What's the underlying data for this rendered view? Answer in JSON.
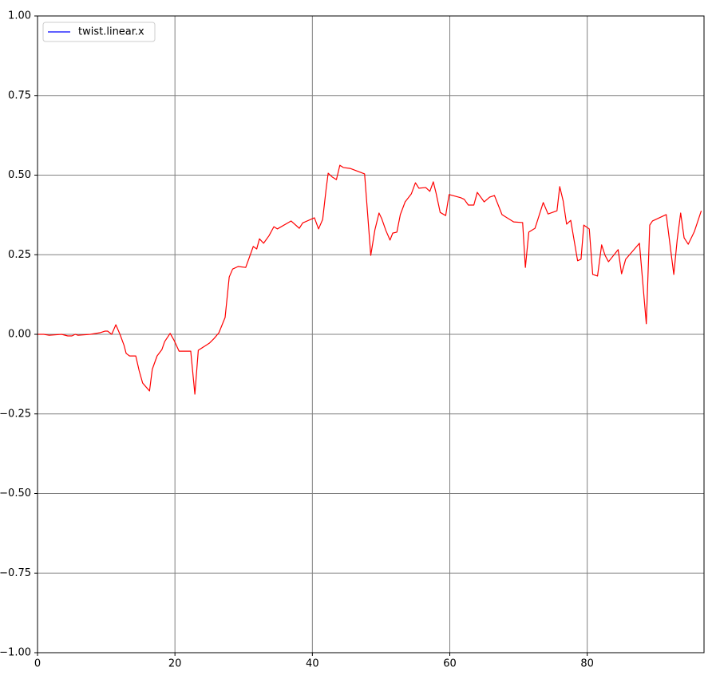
{
  "chart_data": {
    "type": "line",
    "x": [
      0.0,
      0.9,
      1.7,
      3.5,
      4.4,
      5.0,
      5.5,
      5.9,
      7.7,
      9.1,
      9.8,
      10.2,
      10.8,
      11.4,
      12.0,
      12.6,
      12.9,
      13.4,
      14.3,
      14.8,
      15.3,
      16.3,
      16.7,
      17.4,
      18.1,
      18.5,
      19.3,
      19.9,
      20.6,
      20.9,
      22.3,
      22.9,
      23.4,
      25.0,
      25.7,
      26.4,
      27.3,
      27.9,
      28.4,
      29.2,
      30.3,
      31.4,
      31.9,
      32.3,
      32.9,
      33.7,
      34.4,
      34.9,
      36.9,
      38.1,
      38.6,
      40.3,
      40.9,
      41.5,
      42.0,
      42.3,
      42.9,
      43.5,
      44.0,
      44.5,
      45.5,
      47.6,
      48.5,
      49.1,
      49.7,
      50.1,
      50.7,
      51.3,
      51.7,
      52.3,
      52.8,
      53.5,
      54.4,
      55.0,
      55.5,
      56.5,
      57.1,
      57.6,
      58.0,
      58.6,
      59.4,
      59.9,
      61.6,
      62.1,
      62.7,
      63.5,
      64.0,
      65.0,
      65.8,
      66.5,
      67.6,
      69.3,
      70.6,
      71.0,
      71.5,
      72.4,
      73.6,
      74.3,
      75.6,
      76.0,
      76.5,
      77.0,
      77.6,
      78.6,
      79.1,
      79.5,
      80.3,
      80.8,
      81.5,
      82.1,
      82.6,
      83.1,
      84.5,
      85.0,
      85.6,
      87.6,
      88.6,
      89.1,
      89.5,
      91.5,
      92.6,
      93.1,
      93.6,
      94.1,
      94.7,
      95.6,
      96.6
    ],
    "series": [
      {
        "name": "twist.linear.x",
        "color": "#ff0000",
        "legend_color": "#0000ff",
        "values": [
          0.0,
          0.0,
          -0.003,
          0.0,
          -0.005,
          -0.005,
          0.0,
          -0.003,
          0.0,
          0.005,
          0.01,
          0.01,
          0.0,
          0.03,
          0.0,
          -0.035,
          -0.06,
          -0.068,
          -0.068,
          -0.115,
          -0.153,
          -0.178,
          -0.11,
          -0.068,
          -0.048,
          -0.023,
          0.003,
          -0.02,
          -0.053,
          -0.053,
          -0.053,
          -0.188,
          -0.05,
          -0.028,
          -0.013,
          0.005,
          0.053,
          0.18,
          0.205,
          0.213,
          0.21,
          0.276,
          0.268,
          0.3,
          0.286,
          0.31,
          0.338,
          0.331,
          0.356,
          0.333,
          0.35,
          0.366,
          0.331,
          0.361,
          0.456,
          0.506,
          0.494,
          0.486,
          0.531,
          0.524,
          0.521,
          0.504,
          0.248,
          0.328,
          0.381,
          0.363,
          0.326,
          0.296,
          0.318,
          0.321,
          0.376,
          0.416,
          0.441,
          0.476,
          0.459,
          0.461,
          0.449,
          0.479,
          0.444,
          0.383,
          0.373,
          0.439,
          0.429,
          0.424,
          0.406,
          0.406,
          0.446,
          0.416,
          0.431,
          0.436,
          0.376,
          0.353,
          0.351,
          0.21,
          0.321,
          0.333,
          0.414,
          0.378,
          0.388,
          0.464,
          0.419,
          0.346,
          0.358,
          0.231,
          0.236,
          0.343,
          0.331,
          0.188,
          0.183,
          0.281,
          0.248,
          0.228,
          0.266,
          0.19,
          0.236,
          0.286,
          0.033,
          0.343,
          0.356,
          0.376,
          0.188,
          0.298,
          0.381,
          0.303,
          0.283,
          0.323,
          0.388
        ]
      }
    ],
    "xlim": [
      0,
      97
    ],
    "xticks": [
      0,
      20,
      40,
      60,
      80
    ],
    "ylim": [
      -1,
      1
    ],
    "yticks": [
      {
        "value": -1,
        "label": "−1.00"
      },
      {
        "value": -0.75,
        "label": "−0.75"
      },
      {
        "value": -0.5,
        "label": "−0.50"
      },
      {
        "value": -0.25,
        "label": "−0.25"
      },
      {
        "value": 0,
        "label": "0.00"
      },
      {
        "value": 0.25,
        "label": "0.25"
      },
      {
        "value": 0.5,
        "label": "0.50"
      },
      {
        "value": 0.75,
        "label": "0.75"
      },
      {
        "value": 1,
        "label": "1.00"
      }
    ],
    "grid": true,
    "grid_color": "#808080",
    "legend": "upper left"
  }
}
